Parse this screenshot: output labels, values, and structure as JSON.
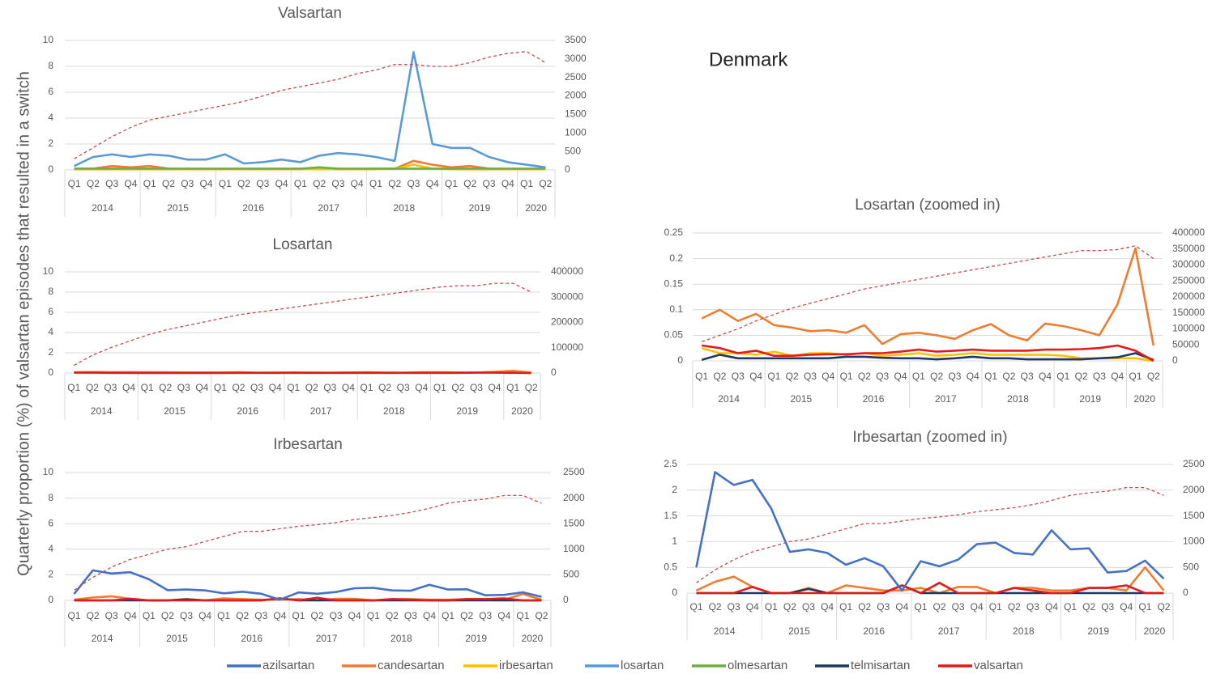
{
  "country": "Denmark",
  "y_axis_label": "Quarterly proportion (%) of valsartan episodes that resulted in a switch",
  "legend": [
    {
      "name": "azilsartan",
      "color": "#4472c4"
    },
    {
      "name": "candesartan",
      "color": "#ed7d31"
    },
    {
      "name": "irbesartan",
      "color": "#ffc000"
    },
    {
      "name": "losartan",
      "color": "#5b9bd5"
    },
    {
      "name": "olmesartan",
      "color": "#70ad47"
    },
    {
      "name": "telmisartan",
      "color": "#1f3864"
    },
    {
      "name": "valsartan",
      "color": "#e31a1c"
    }
  ],
  "chart_data": [
    {
      "type": "line",
      "title": "Valsartan",
      "quarters": [
        "Q1",
        "Q2",
        "Q3",
        "Q4",
        "Q1",
        "Q2",
        "Q3",
        "Q4",
        "Q1",
        "Q2",
        "Q3",
        "Q4",
        "Q1",
        "Q2",
        "Q3",
        "Q4",
        "Q1",
        "Q2",
        "Q3",
        "Q4",
        "Q1",
        "Q2",
        "Q3",
        "Q4",
        "Q1",
        "Q2"
      ],
      "years": [
        "2014",
        "2015",
        "2016",
        "2017",
        "2018",
        "2019",
        "2020"
      ],
      "ylim": [
        0,
        10
      ],
      "yticks": [
        0,
        2,
        4,
        6,
        8,
        10
      ],
      "y2lim": [
        0,
        3500
      ],
      "y2ticks": [
        0,
        500,
        1000,
        1500,
        2000,
        2500,
        3000,
        3500
      ],
      "grid": true,
      "series": [
        {
          "name": "candesartan",
          "color": "#ed7d31",
          "values": [
            0.1,
            0.1,
            0.3,
            0.2,
            0.3,
            0.1,
            0.05,
            0.05,
            0.05,
            0.05,
            0.05,
            0.05,
            0.05,
            0.2,
            0.05,
            0.05,
            0.1,
            0.1,
            0.7,
            0.4,
            0.2,
            0.3,
            0.1,
            0.05,
            0.05,
            0.05
          ]
        },
        {
          "name": "irbesartan",
          "color": "#ffc000",
          "values": [
            0.05,
            0.05,
            0.05,
            0.05,
            0.05,
            0.05,
            0.05,
            0.05,
            0.05,
            0.05,
            0.05,
            0.05,
            0.05,
            0.05,
            0.05,
            0.05,
            0.05,
            0.1,
            0.4,
            0.1,
            0.05,
            0.05,
            0.05,
            0.05,
            0.05,
            0.05
          ]
        },
        {
          "name": "olmesartan",
          "color": "#70ad47",
          "values": [
            0.1,
            0.1,
            0.1,
            0.1,
            0.1,
            0.1,
            0.1,
            0.1,
            0.1,
            0.1,
            0.1,
            0.1,
            0.1,
            0.2,
            0.1,
            0.1,
            0.1,
            0.1,
            0.1,
            0.1,
            0.1,
            0.1,
            0.1,
            0.1,
            0.1,
            0.1
          ]
        },
        {
          "name": "losartan",
          "color": "#5b9bd5",
          "values": [
            0.3,
            1.0,
            1.2,
            1.0,
            1.2,
            1.1,
            0.8,
            0.8,
            1.2,
            0.5,
            0.6,
            0.8,
            0.6,
            1.1,
            1.3,
            1.2,
            1.0,
            0.7,
            9.1,
            2.0,
            1.7,
            1.7,
            1.0,
            0.6,
            0.4,
            0.2
          ]
        },
        {
          "axis": "y2",
          "style": "dashed",
          "color": "#c0504d",
          "values": [
            300,
            600,
            900,
            1150,
            1350,
            1450,
            1550,
            1650,
            1750,
            1850,
            2000,
            2150,
            2250,
            2350,
            2450,
            2600,
            2700,
            2850,
            2850,
            2800,
            2800,
            2900,
            3050,
            3150,
            3200,
            2900
          ]
        }
      ]
    },
    {
      "type": "line",
      "title": "Losartan",
      "quarters": [
        "Q1",
        "Q2",
        "Q3",
        "Q4",
        "Q1",
        "Q2",
        "Q3",
        "Q4",
        "Q1",
        "Q2",
        "Q3",
        "Q4",
        "Q1",
        "Q2",
        "Q3",
        "Q4",
        "Q1",
        "Q2",
        "Q3",
        "Q4",
        "Q1",
        "Q2",
        "Q3",
        "Q4",
        "Q1",
        "Q2"
      ],
      "years": [
        "2014",
        "2015",
        "2016",
        "2017",
        "2018",
        "2019",
        "2020"
      ],
      "ylim": [
        0,
        10
      ],
      "yticks": [
        0,
        2,
        4,
        6,
        8,
        10
      ],
      "y2lim": [
        0,
        400000
      ],
      "y2ticks": [
        0,
        100000,
        200000,
        300000,
        400000
      ],
      "grid": true,
      "series": [
        {
          "name": "candesartan",
          "color": "#ed7d31",
          "values": [
            0.08,
            0.1,
            0.08,
            0.09,
            0.07,
            0.07,
            0.06,
            0.06,
            0.06,
            0.07,
            0.03,
            0.05,
            0.06,
            0.05,
            0.04,
            0.06,
            0.07,
            0.05,
            0.04,
            0.07,
            0.07,
            0.06,
            0.05,
            0.11,
            0.22,
            0.03
          ]
        },
        {
          "name": "valsartan",
          "color": "#e31a1c",
          "values": [
            0.03,
            0.03,
            0.02,
            0.02,
            0.01,
            0.01,
            0.01,
            0.01,
            0.01,
            0.02,
            0.02,
            0.02,
            0.02,
            0.02,
            0.02,
            0.02,
            0.02,
            0.02,
            0.02,
            0.02,
            0.02,
            0.02,
            0.03,
            0.03,
            0.02,
            0
          ]
        },
        {
          "axis": "y2",
          "style": "dashed",
          "color": "#c0504d",
          "values": [
            30000,
            70000,
            100000,
            125000,
            150000,
            170000,
            185000,
            200000,
            215000,
            230000,
            240000,
            250000,
            260000,
            270000,
            280000,
            290000,
            300000,
            310000,
            320000,
            330000,
            340000,
            345000,
            345000,
            355000,
            355000,
            320000
          ]
        }
      ]
    },
    {
      "type": "line",
      "title": "Irbesartan",
      "quarters": [
        "Q1",
        "Q2",
        "Q3",
        "Q4",
        "Q1",
        "Q2",
        "Q3",
        "Q4",
        "Q1",
        "Q2",
        "Q3",
        "Q4",
        "Q1",
        "Q2",
        "Q3",
        "Q4",
        "Q1",
        "Q2",
        "Q3",
        "Q4",
        "Q1",
        "Q2",
        "Q3",
        "Q4",
        "Q1",
        "Q2"
      ],
      "years": [
        "2014",
        "2015",
        "2016",
        "2017",
        "2018",
        "2019",
        "2020"
      ],
      "ylim": [
        0,
        10
      ],
      "yticks": [
        0,
        2,
        4,
        6,
        8,
        10
      ],
      "y2lim": [
        0,
        2500
      ],
      "y2ticks": [
        0,
        500,
        1000,
        1500,
        2000,
        2500
      ],
      "grid": true,
      "series": [
        {
          "name": "candesartan",
          "color": "#ed7d31",
          "values": [
            0.05,
            0.22,
            0.32,
            0.12,
            0,
            0,
            0.1,
            0,
            0.15,
            0.1,
            0.05,
            0.05,
            0.1,
            0,
            0.12,
            0.12,
            0,
            0.1,
            0.1,
            0.05,
            0.05,
            0.1,
            0.1,
            0.05,
            0.5,
            0.05
          ]
        },
        {
          "name": "telmisartan",
          "color": "#1f3864",
          "values": [
            0,
            0,
            0,
            0,
            0,
            0,
            0.08,
            0,
            0,
            0,
            0,
            0.15,
            0,
            0,
            0,
            0,
            0,
            0,
            0,
            0,
            0,
            0,
            0,
            0,
            0,
            0
          ]
        },
        {
          "name": "valsartan",
          "color": "#e31a1c",
          "values": [
            0,
            0,
            0,
            0.12,
            0,
            0,
            0,
            0,
            0,
            0,
            0,
            0.15,
            0,
            0.2,
            0,
            0,
            0,
            0.1,
            0.05,
            0,
            0,
            0.1,
            0.1,
            0.15,
            0,
            0
          ]
        },
        {
          "name": "azilsartan",
          "color": "#4472c4",
          "values": [
            0.5,
            2.35,
            2.1,
            2.2,
            1.65,
            0.8,
            0.85,
            0.78,
            0.55,
            0.68,
            0.52,
            0.05,
            0.62,
            0.52,
            0.65,
            0.95,
            0.98,
            0.78,
            0.75,
            1.22,
            0.85,
            0.87,
            0.4,
            0.43,
            0.63,
            0.28
          ]
        },
        {
          "axis": "y2",
          "style": "dashed",
          "color": "#c0504d",
          "values": [
            200,
            450,
            650,
            800,
            900,
            1000,
            1050,
            1150,
            1250,
            1350,
            1350,
            1400,
            1450,
            1480,
            1520,
            1580,
            1620,
            1660,
            1720,
            1800,
            1900,
            1950,
            1980,
            2050,
            2050,
            1900
          ]
        }
      ]
    },
    {
      "type": "line",
      "title": "Losartan (zoomed in)",
      "quarters": [
        "Q1",
        "Q2",
        "Q3",
        "Q4",
        "Q1",
        "Q2",
        "Q3",
        "Q4",
        "Q1",
        "Q2",
        "Q3",
        "Q4",
        "Q1",
        "Q2",
        "Q3",
        "Q4",
        "Q1",
        "Q2",
        "Q3",
        "Q4",
        "Q1",
        "Q2",
        "Q3",
        "Q4",
        "Q1",
        "Q2"
      ],
      "years": [
        "2014",
        "2015",
        "2016",
        "2017",
        "2018",
        "2019",
        "2020"
      ],
      "ylim": [
        0,
        0.25
      ],
      "yticks": [
        0,
        0.05,
        0.1,
        0.15,
        0.2,
        0.25
      ],
      "y2lim": [
        0,
        400000
      ],
      "y2ticks": [
        0,
        50000,
        100000,
        150000,
        200000,
        250000,
        300000,
        350000,
        400000
      ],
      "grid": true,
      "series": [
        {
          "name": "candesartan",
          "color": "#ed7d31",
          "values": [
            0.083,
            0.1,
            0.078,
            0.092,
            0.07,
            0.065,
            0.058,
            0.06,
            0.055,
            0.07,
            0.033,
            0.052,
            0.055,
            0.05,
            0.043,
            0.06,
            0.072,
            0.05,
            0.04,
            0.073,
            0.068,
            0.06,
            0.05,
            0.11,
            0.22,
            0.03
          ]
        },
        {
          "name": "irbesartan",
          "color": "#ffc000",
          "values": [
            0.025,
            0.015,
            0.015,
            0.012,
            0.018,
            0.01,
            0.015,
            0.015,
            0.012,
            0.015,
            0.01,
            0.012,
            0.015,
            0.01,
            0.012,
            0.015,
            0.012,
            0.012,
            0.012,
            0.012,
            0.01,
            0.005,
            0.005,
            0.005,
            0.005,
            0
          ]
        },
        {
          "name": "telmisartan",
          "color": "#1f3864",
          "values": [
            0.002,
            0.012,
            0.005,
            0.005,
            0.005,
            0.005,
            0.005,
            0.005,
            0.008,
            0.008,
            0.006,
            0.005,
            0.005,
            0.003,
            0.005,
            0.008,
            0.005,
            0.005,
            0.003,
            0.003,
            0.003,
            0.003,
            0.005,
            0.007,
            0.015,
            0.002
          ]
        },
        {
          "name": "valsartan",
          "color": "#e31a1c",
          "values": [
            0.03,
            0.025,
            0.015,
            0.02,
            0.01,
            0.01,
            0.012,
            0.013,
            0.013,
            0.015,
            0.015,
            0.018,
            0.022,
            0.018,
            0.02,
            0.022,
            0.02,
            0.02,
            0.02,
            0.022,
            0.022,
            0.023,
            0.025,
            0.03,
            0.02,
            0
          ]
        },
        {
          "axis": "y2",
          "style": "dashed",
          "color": "#c0504d",
          "values": [
            60000,
            80000,
            100000,
            125000,
            145000,
            165000,
            180000,
            195000,
            210000,
            225000,
            235000,
            245000,
            255000,
            265000,
            275000,
            285000,
            295000,
            305000,
            315000,
            325000,
            335000,
            345000,
            345000,
            348000,
            360000,
            320000
          ]
        }
      ]
    },
    {
      "type": "line",
      "title": "Irbesartan (zoomed in)",
      "quarters": [
        "Q1",
        "Q2",
        "Q3",
        "Q4",
        "Q1",
        "Q2",
        "Q3",
        "Q4",
        "Q1",
        "Q2",
        "Q3",
        "Q4",
        "Q1",
        "Q2",
        "Q3",
        "Q4",
        "Q1",
        "Q2",
        "Q3",
        "Q4",
        "Q1",
        "Q2",
        "Q3",
        "Q4",
        "Q1",
        "Q2"
      ],
      "years": [
        "2014",
        "2015",
        "2016",
        "2017",
        "2018",
        "2019",
        "2020"
      ],
      "ylim": [
        0,
        2.5
      ],
      "yticks": [
        0,
        0.5,
        1,
        1.5,
        2,
        2.5
      ],
      "y2lim": [
        0,
        2500
      ],
      "y2ticks": [
        0,
        500,
        1000,
        1500,
        2000,
        2500
      ],
      "grid": true,
      "series": [
        {
          "name": "candesartan",
          "color": "#ed7d31",
          "values": [
            0.05,
            0.22,
            0.32,
            0.12,
            0,
            0,
            0.1,
            0,
            0.15,
            0.1,
            0.05,
            0.05,
            0.1,
            0,
            0.12,
            0.12,
            0,
            0.1,
            0.1,
            0.05,
            0.05,
            0.1,
            0.1,
            0.05,
            0.5,
            0.05
          ]
        },
        {
          "name": "telmisartan",
          "color": "#1f3864",
          "values": [
            0,
            0,
            0,
            0,
            0,
            0,
            0.08,
            0,
            0,
            0,
            0,
            0.15,
            0,
            0,
            0,
            0,
            0,
            0,
            0,
            0,
            0,
            0,
            0,
            0,
            0,
            0
          ]
        },
        {
          "name": "valsartan",
          "color": "#e31a1c",
          "values": [
            0,
            0,
            0,
            0.12,
            0,
            0,
            0,
            0,
            0,
            0,
            0,
            0.15,
            0,
            0.2,
            0,
            0,
            0,
            0.1,
            0.05,
            0,
            0,
            0.1,
            0.1,
            0.15,
            0,
            0
          ]
        },
        {
          "name": "azilsartan",
          "color": "#4472c4",
          "values": [
            0.5,
            2.35,
            2.1,
            2.2,
            1.65,
            0.8,
            0.85,
            0.78,
            0.55,
            0.68,
            0.52,
            0.05,
            0.62,
            0.52,
            0.65,
            0.95,
            0.98,
            0.78,
            0.75,
            1.22,
            0.85,
            0.87,
            0.4,
            0.43,
            0.63,
            0.28
          ]
        },
        {
          "axis": "y2",
          "style": "dashed",
          "color": "#c0504d",
          "values": [
            200,
            450,
            650,
            800,
            900,
            1000,
            1050,
            1150,
            1250,
            1350,
            1350,
            1400,
            1450,
            1480,
            1520,
            1580,
            1620,
            1660,
            1720,
            1800,
            1900,
            1950,
            1980,
            2050,
            2050,
            1900
          ]
        }
      ]
    }
  ]
}
